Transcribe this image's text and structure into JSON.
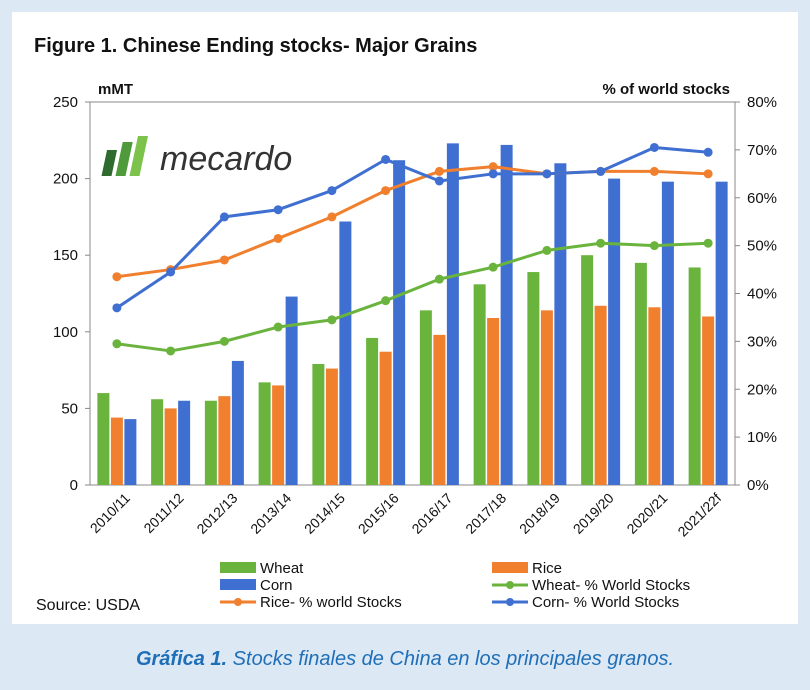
{
  "chart_data": {
    "type": "bar",
    "title": "Figure 1. Chinese Ending stocks-  Major Grains",
    "ylabel_left": "mMT",
    "ylabel_right": "% of world stocks",
    "ylim_left": [
      0,
      250
    ],
    "yticks_left": [
      0,
      50,
      100,
      150,
      200,
      250
    ],
    "ylim_right": [
      0,
      80
    ],
    "yticks_right": [
      "0%",
      "10%",
      "20%",
      "30%",
      "40%",
      "50%",
      "60%",
      "70%",
      "80%"
    ],
    "categories": [
      "2010/11",
      "2011/12",
      "2012/13",
      "2013/14",
      "2014/15",
      "2015/16",
      "2016/17",
      "2017/18",
      "2018/19",
      "2019/20",
      "2020/21",
      "2021/22f"
    ],
    "bar_series": [
      {
        "name": "Wheat",
        "color": "#6ab43e",
        "values": [
          60,
          56,
          55,
          67,
          79,
          96,
          114,
          131,
          139,
          150,
          145,
          142
        ]
      },
      {
        "name": "Rice",
        "color": "#f07f2e",
        "values": [
          44,
          50,
          58,
          65,
          76,
          87,
          98,
          109,
          114,
          117,
          116,
          110
        ]
      },
      {
        "name": "Corn",
        "color": "#3f6fd1",
        "values": [
          43,
          55,
          81,
          123,
          172,
          212,
          223,
          222,
          210,
          200,
          198,
          198
        ]
      }
    ],
    "line_series": [
      {
        "name": "Wheat- % World Stocks",
        "color": "#6ab43e",
        "values": [
          29.5,
          28,
          30,
          33,
          34.5,
          38.5,
          43,
          45.5,
          49,
          50.5,
          50,
          50.5
        ]
      },
      {
        "name": "Rice- % world Stocks",
        "color": "#f07f2e",
        "values": [
          43.5,
          45,
          47,
          51.5,
          56,
          61.5,
          65.5,
          66.5,
          65,
          65.5,
          65.5,
          65
        ]
      },
      {
        "name": "Corn- % World Stocks",
        "color": "#3f6fd1",
        "values": [
          37,
          44.5,
          56,
          57.5,
          61.5,
          68,
          63.5,
          65,
          65,
          65.5,
          70.5,
          69.5
        ]
      }
    ],
    "legend": [
      {
        "label": "Wheat",
        "kind": "bar",
        "color": "#6ab43e"
      },
      {
        "label": "Rice",
        "kind": "bar",
        "color": "#f07f2e"
      },
      {
        "label": "Corn",
        "kind": "bar",
        "color": "#3f6fd1"
      },
      {
        "label": "Wheat- % World Stocks",
        "kind": "line",
        "color": "#6ab43e"
      },
      {
        "label": "Rice- % world Stocks",
        "kind": "line",
        "color": "#f07f2e"
      },
      {
        "label": "Corn- % World Stocks",
        "kind": "line",
        "color": "#3f6fd1"
      }
    ],
    "legend_placement": "bottom",
    "source": "Source: USDA",
    "logo_text": "mecardo",
    "grid": false
  },
  "caption": {
    "label": "Gráfica 1.",
    "text": " Stocks finales de China en los principales granos."
  }
}
